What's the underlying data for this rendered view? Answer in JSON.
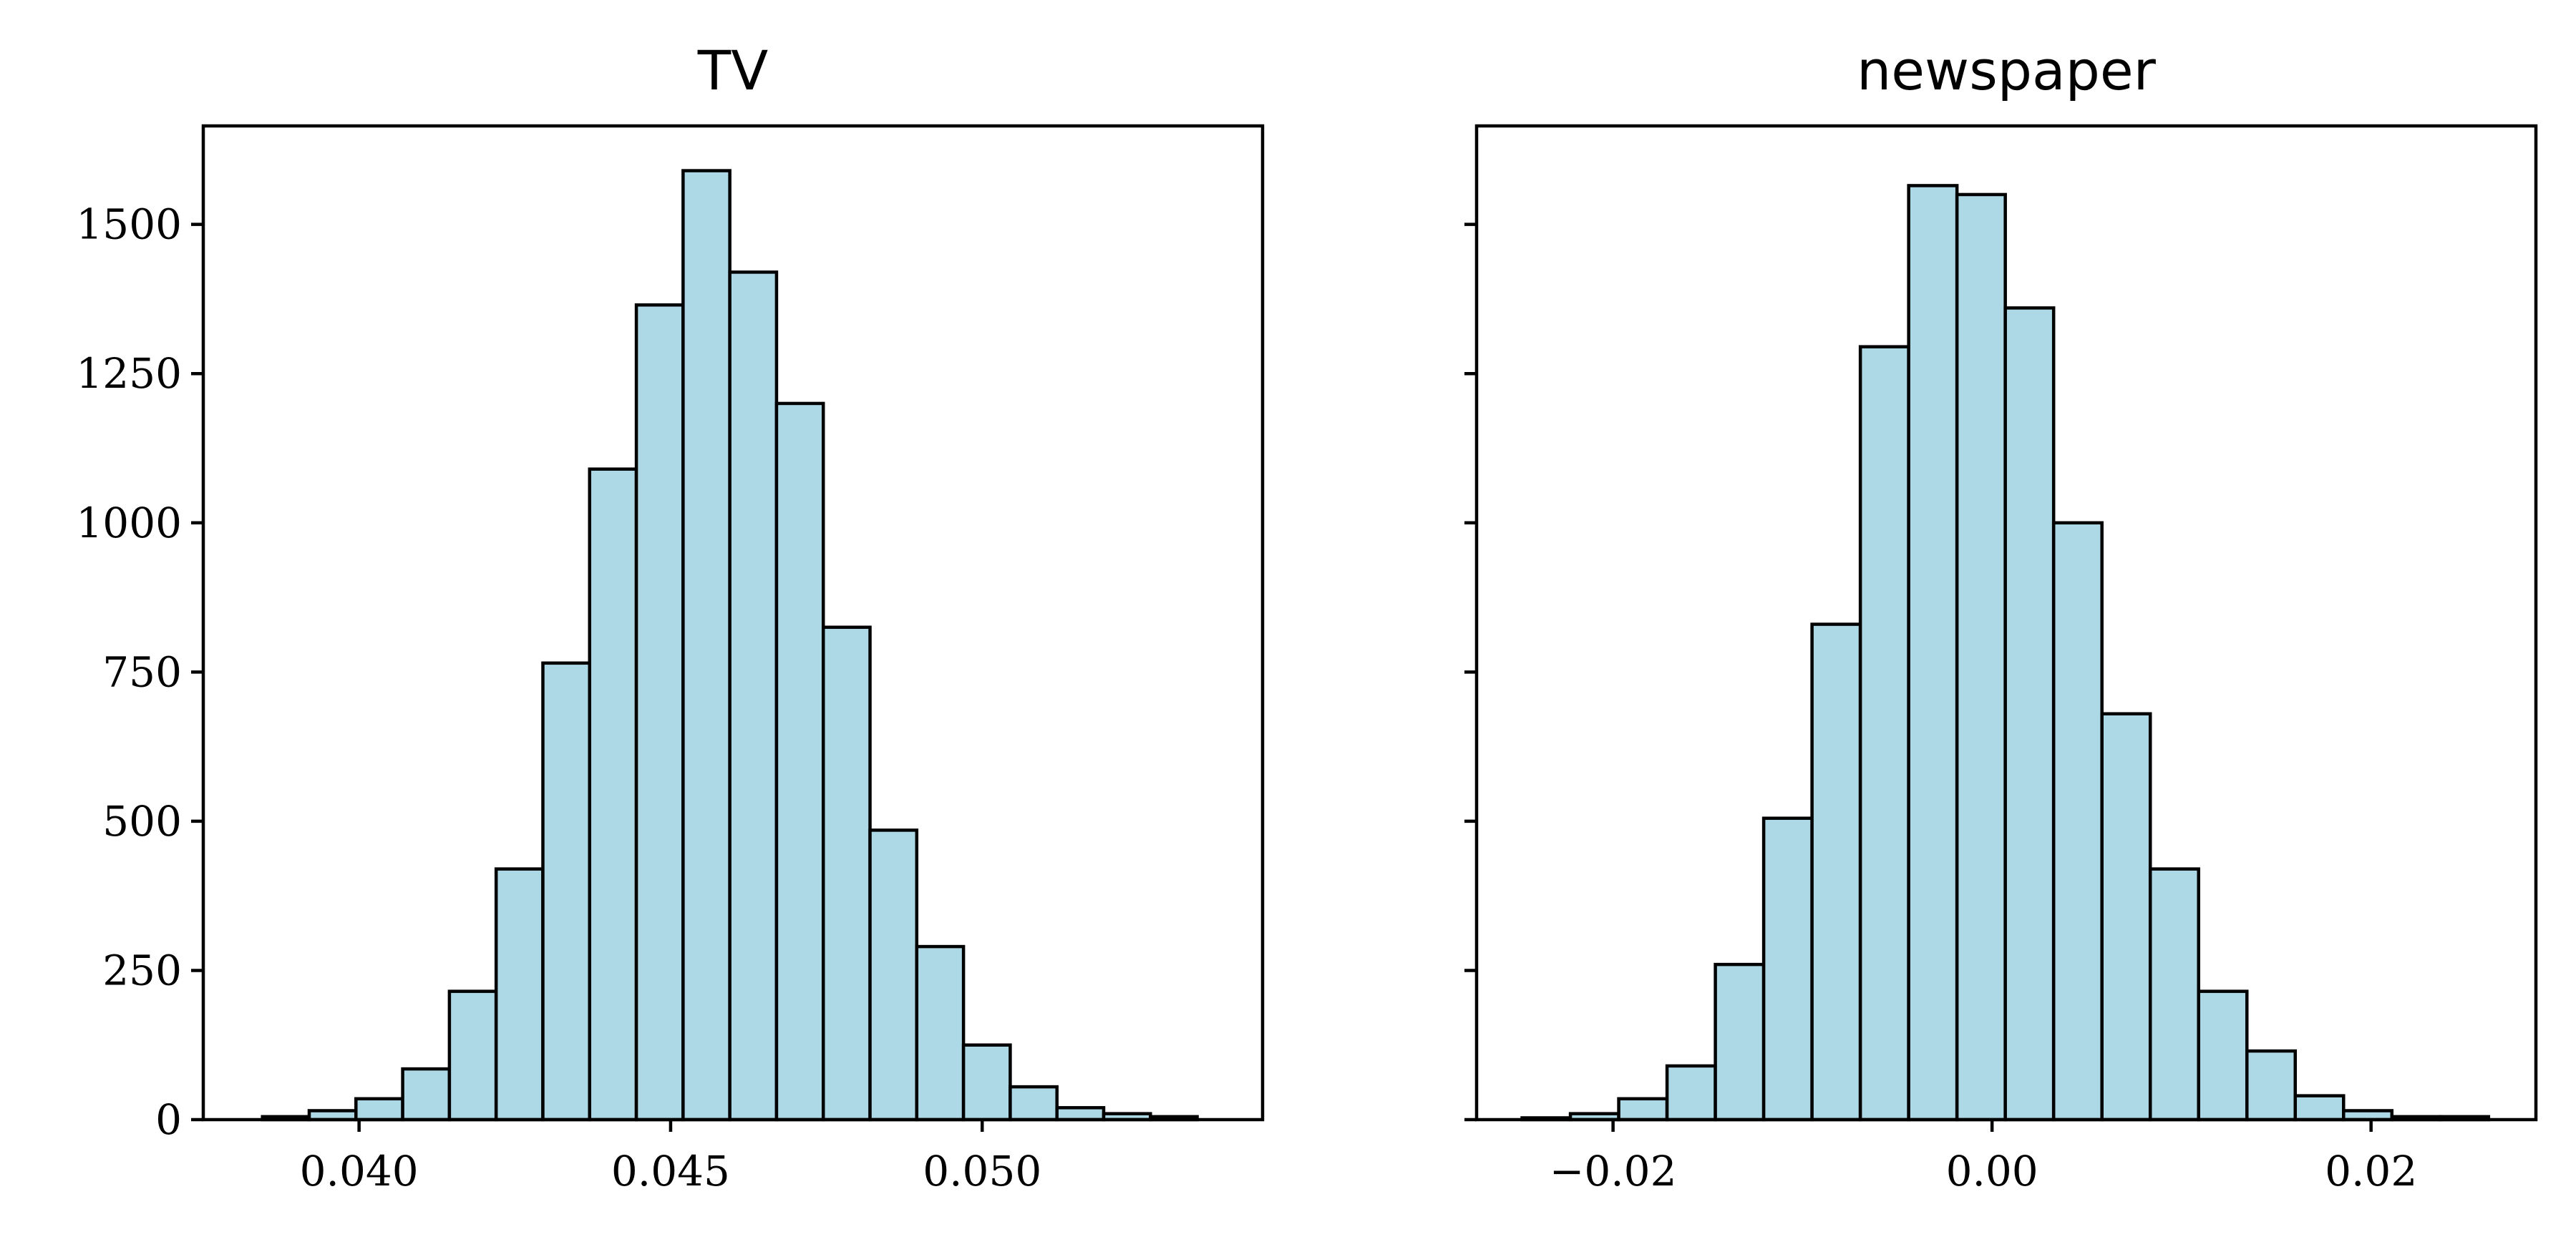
{
  "chart_data": [
    {
      "type": "bar",
      "subtype": "histogram",
      "title": "TV",
      "xlabel": "",
      "ylabel": "",
      "bar_color": "#add8e6",
      "edge_color": "#000000",
      "bin_width": 0.00075,
      "bin_starts": [
        0.03845,
        0.0392,
        0.03995,
        0.0407,
        0.04145,
        0.0422,
        0.04295,
        0.0437,
        0.04445,
        0.0452,
        0.04595,
        0.0467,
        0.04745,
        0.0482,
        0.04895,
        0.0497,
        0.05045,
        0.0512,
        0.05195,
        0.0527
      ],
      "values": [
        5,
        15,
        35,
        85,
        215,
        420,
        765,
        1090,
        1365,
        1590,
        1420,
        1200,
        825,
        485,
        290,
        125,
        55,
        20,
        10,
        5
      ],
      "xlim": [
        0.0375,
        0.0545
      ],
      "ylim": [
        0,
        1665
      ],
      "xticks": [
        0.04,
        0.045,
        0.05
      ],
      "xtick_labels": [
        "0.040",
        "0.045",
        "0.050"
      ],
      "yticks": [
        0,
        250,
        500,
        750,
        1000,
        1250,
        1500
      ],
      "ytick_labels": [
        "0",
        "250",
        "500",
        "750",
        "1000",
        "1250",
        "1500"
      ],
      "show_ytick_labels": true,
      "grid": false
    },
    {
      "type": "bar",
      "subtype": "histogram",
      "title": "newspaper",
      "xlabel": "",
      "ylabel": "",
      "bar_color": "#add8e6",
      "edge_color": "#000000",
      "bin_width": 0.00255,
      "bin_starts": [
        -0.0248,
        -0.02225,
        -0.0197,
        -0.01715,
        -0.0146,
        -0.01205,
        -0.0095,
        -0.00695,
        -0.0044,
        -0.00185,
        0.0007,
        0.00325,
        0.0058,
        0.00835,
        0.0109,
        0.01345,
        0.016,
        0.01855,
        0.0211,
        0.02365
      ],
      "values": [
        3,
        10,
        35,
        90,
        260,
        505,
        830,
        1295,
        1565,
        1550,
        1360,
        1000,
        680,
        420,
        215,
        115,
        40,
        15,
        5,
        5
      ],
      "xlim": [
        -0.0272,
        0.0287
      ],
      "ylim": [
        0,
        1665
      ],
      "xticks": [
        -0.02,
        0.0,
        0.02
      ],
      "xtick_labels": [
        "−0.02",
        "0.00",
        "0.02"
      ],
      "yticks": [
        0,
        250,
        500,
        750,
        1000,
        1250,
        1500
      ],
      "ytick_labels": [
        "0",
        "250",
        "500",
        "750",
        "1000",
        "1250",
        "1500"
      ],
      "show_ytick_labels": false,
      "grid": false
    }
  ]
}
